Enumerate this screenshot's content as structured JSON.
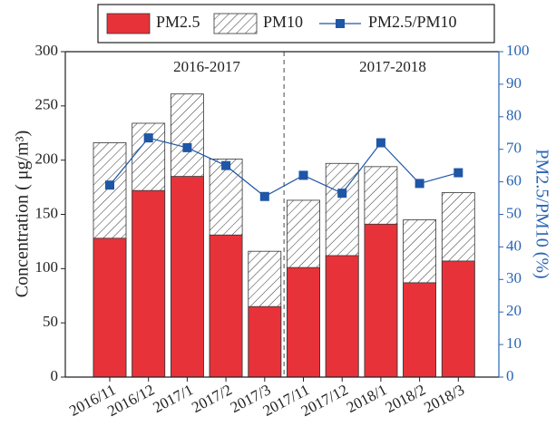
{
  "chart_data": {
    "type": "bar",
    "categories": [
      "2016/11",
      "2016/12",
      "2017/1",
      "2017/2",
      "2017/3",
      "2017/11",
      "2017/12",
      "2018/1",
      "2018/2",
      "2018/3"
    ],
    "series": [
      {
        "name": "PM2.5",
        "color": "#e8323a",
        "values": [
          128,
          172,
          185,
          131,
          65,
          101,
          112,
          141,
          87,
          107
        ]
      },
      {
        "name": "PM10",
        "color": "#ffffff",
        "pattern": "hatch",
        "values": [
          216,
          234,
          261,
          201,
          116,
          163,
          197,
          194,
          145,
          170
        ]
      },
      {
        "name": "PM2.5/PM10",
        "color": "#1f56a6",
        "type": "line",
        "axis": "y2",
        "values": [
          59,
          73.5,
          70.5,
          65,
          55.5,
          62,
          56.5,
          72,
          59.5,
          62.8
        ]
      }
    ],
    "ylabel": "Concentration ( μg/m³)",
    "y2label": "PM2.5/PM10 (%)",
    "annotations": [
      "2016-2017",
      "2017-2018"
    ],
    "ylim": [
      0,
      300
    ],
    "yticks": [
      0,
      50,
      100,
      150,
      200,
      250,
      300
    ],
    "y2lim": [
      0,
      100
    ],
    "y2ticks": [
      0,
      10,
      20,
      30,
      40,
      50,
      60,
      70,
      80,
      90,
      100
    ],
    "grid": false
  }
}
